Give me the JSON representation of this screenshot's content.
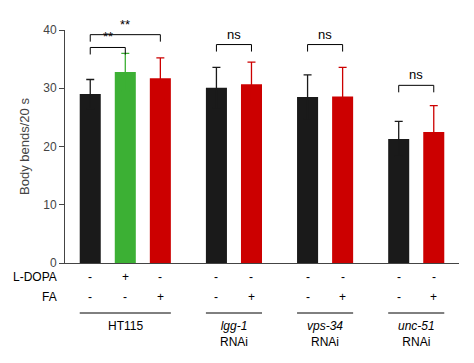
{
  "chart_data": {
    "type": "bar",
    "categories": [
      null,
      null,
      null,
      null,
      null,
      null,
      null,
      null,
      null
    ],
    "values": [
      29.0,
      32.8,
      31.7,
      30.1,
      30.7,
      28.5,
      28.6,
      21.3,
      22.5
    ],
    "errors": [
      2.5,
      3.2,
      3.5,
      3.5,
      3.8,
      3.8,
      5.0,
      3.0,
      4.5
    ],
    "colors": [
      "#1a1a1a",
      "#3cb034",
      "#cc0000",
      "#1a1a1a",
      "#cc0000",
      "#1a1a1a",
      "#cc0000",
      "#1a1a1a",
      "#cc0000"
    ],
    "ylabel": "Body bends/20 s",
    "ylim": [
      0,
      40
    ],
    "yticks": [
      0,
      10,
      20,
      30,
      40
    ],
    "grid": false,
    "tick_labels": "y",
    "groups": [
      {
        "label": "HT115",
        "from": 0,
        "to": 2
      },
      {
        "label": "lgg-1\nRNAi",
        "from": 3,
        "to": 4
      },
      {
        "label": "vps-34\nRNAi",
        "from": 5,
        "to": 6
      },
      {
        "label": "unc-51\nRNAi",
        "from": 7,
        "to": 8
      }
    ],
    "row_labels": [
      "L-DOPA",
      "FA"
    ],
    "rows": [
      [
        "-",
        "+",
        "-",
        "-",
        "-",
        "-",
        "-",
        "-",
        "-"
      ],
      [
        "-",
        "-",
        "+",
        "-",
        "+",
        "-",
        "+",
        "-",
        "+"
      ]
    ],
    "significance": [
      {
        "label": "**",
        "from": 0,
        "to": 1,
        "y": 37.0
      },
      {
        "label": "**",
        "from": 0,
        "to": 2,
        "y": 39.2
      },
      {
        "label": "ns",
        "from": 3,
        "to": 4,
        "y": 37.5
      },
      {
        "label": "ns",
        "from": 5,
        "to": 6,
        "y": 37.5
      },
      {
        "label": "ns",
        "from": 7,
        "to": 8,
        "y": 30.5
      }
    ]
  }
}
